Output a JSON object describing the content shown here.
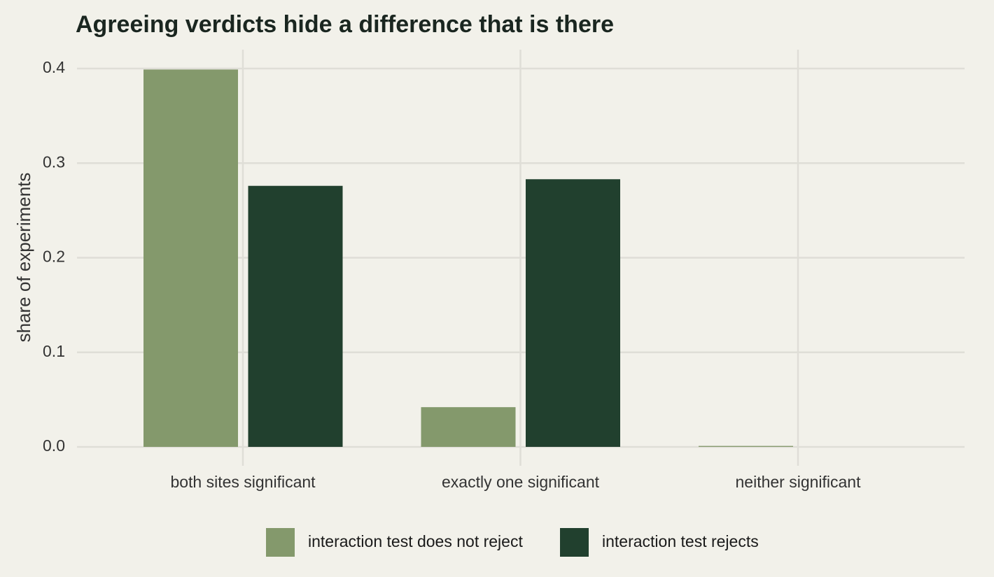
{
  "chart_data": {
    "type": "bar",
    "title": "Agreeing verdicts hide a difference that is there",
    "y_label": "share of experiments",
    "categories": [
      "both sites significant",
      "exactly one significant",
      "neither significant"
    ],
    "series": [
      {
        "name": "interaction test does not reject",
        "color": "#84996c",
        "values": [
          0.399,
          0.042,
          0.001
        ]
      },
      {
        "name": "interaction test rejects",
        "color": "#21402e",
        "values": [
          0.276,
          0.283,
          0
        ]
      }
    ],
    "ylim": [
      -0.02,
      0.42
    ],
    "yticks": [
      {
        "value": 0,
        "label": "0.0"
      },
      0.1,
      0.2,
      0.3,
      0.4
    ],
    "grid": true,
    "legend": "bottom"
  }
}
